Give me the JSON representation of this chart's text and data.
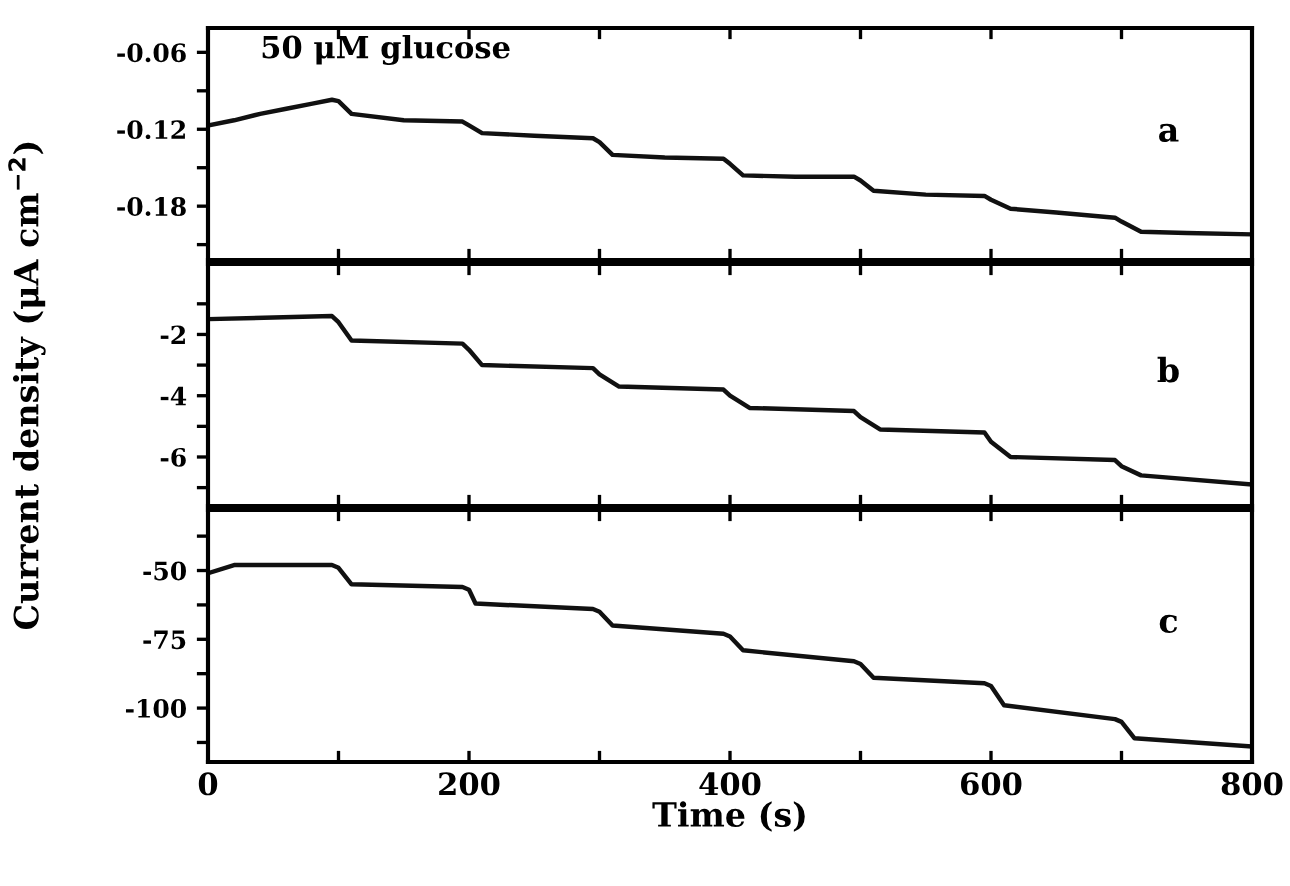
{
  "chart_data": [
    {
      "type": "line",
      "x": [
        0,
        20,
        40,
        60,
        80,
        95,
        100,
        110,
        150,
        195,
        200,
        210,
        250,
        295,
        300,
        310,
        350,
        395,
        400,
        410,
        450,
        495,
        500,
        510,
        550,
        595,
        600,
        615,
        650,
        695,
        700,
        715,
        750,
        800
      ],
      "series": [
        {
          "color": "#111111",
          "values": [
            -0.117,
            -0.113,
            -0.108,
            -0.104,
            -0.1,
            -0.097,
            -0.098,
            -0.108,
            -0.113,
            -0.114,
            -0.117,
            -0.123,
            -0.125,
            -0.127,
            -0.13,
            -0.14,
            -0.142,
            -0.143,
            -0.147,
            -0.156,
            -0.157,
            -0.157,
            -0.16,
            -0.168,
            -0.171,
            -0.172,
            -0.175,
            -0.182,
            -0.185,
            -0.189,
            -0.192,
            -0.2,
            -0.201,
            -0.202
          ]
        }
      ],
      "annotations": [
        "50 μM glucose",
        "a"
      ],
      "xlim": [
        0,
        800
      ],
      "xticks": [
        {
          "value": 0,
          "label": null
        },
        {
          "value": 100,
          "label": null
        },
        {
          "value": 200,
          "label": null
        },
        {
          "value": 300,
          "label": null
        },
        {
          "value": 400,
          "label": null
        },
        {
          "value": 500,
          "label": null
        },
        {
          "value": 600,
          "label": null
        },
        {
          "value": 700,
          "label": null
        },
        {
          "value": 800,
          "label": null
        }
      ],
      "ylim": [
        -0.222,
        -0.041
      ],
      "yticks": [
        {
          "value": -0.06,
          "label": "-0.06"
        },
        {
          "value": -0.09,
          "label": null
        },
        {
          "value": -0.12,
          "label": "-0.12"
        },
        {
          "value": -0.15,
          "label": null
        },
        {
          "value": -0.18,
          "label": "-0.18"
        },
        {
          "value": -0.21,
          "label": null
        }
      ],
      "tick_labels": "y",
      "grid": false,
      "legend": false
    },
    {
      "type": "line",
      "x": [
        0,
        95,
        100,
        110,
        195,
        200,
        210,
        295,
        300,
        315,
        395,
        400,
        415,
        495,
        500,
        515,
        595,
        600,
        615,
        695,
        700,
        715,
        800
      ],
      "series": [
        {
          "color": "#111111",
          "values": [
            -1.5,
            -1.4,
            -1.6,
            -2.2,
            -2.3,
            -2.5,
            -3.0,
            -3.1,
            -3.3,
            -3.7,
            -3.8,
            -4.0,
            -4.4,
            -4.5,
            -4.7,
            -5.1,
            -5.2,
            -5.5,
            -6.0,
            -6.1,
            -6.3,
            -6.6,
            -6.9
          ]
        }
      ],
      "annotations": [
        "b"
      ],
      "ylabel": "Current density (μA cm$^{−2}$)",
      "xlim": [
        0,
        800
      ],
      "xticks": [
        {
          "value": 0,
          "label": null
        },
        {
          "value": 100,
          "label": null
        },
        {
          "value": 200,
          "label": null
        },
        {
          "value": 300,
          "label": null
        },
        {
          "value": 400,
          "label": null
        },
        {
          "value": 500,
          "label": null
        },
        {
          "value": 600,
          "label": null
        },
        {
          "value": 700,
          "label": null
        },
        {
          "value": 800,
          "label": null
        }
      ],
      "ylim": [
        -7.6,
        0.3
      ],
      "yticks": [
        {
          "value": -1,
          "label": null
        },
        {
          "value": -2,
          "label": "-2"
        },
        {
          "value": -3,
          "label": null
        },
        {
          "value": -4,
          "label": "-4"
        },
        {
          "value": -5,
          "label": null
        },
        {
          "value": -6,
          "label": "-6"
        },
        {
          "value": -7,
          "label": null
        }
      ],
      "tick_labels": "y",
      "grid": false,
      "legend": false
    },
    {
      "type": "line",
      "x": [
        0,
        20,
        95,
        100,
        110,
        195,
        200,
        205,
        295,
        300,
        310,
        395,
        400,
        410,
        495,
        500,
        510,
        595,
        600,
        610,
        695,
        700,
        710,
        800
      ],
      "series": [
        {
          "color": "#111111",
          "values": [
            -51,
            -48,
            -48,
            -49,
            -55,
            -56,
            -57,
            -62,
            -64,
            -65,
            -70,
            -73,
            -74,
            -79,
            -83,
            -84,
            -89,
            -91,
            -92,
            -99,
            -104,
            -105,
            -111,
            -114
          ]
        }
      ],
      "annotations": [
        "c"
      ],
      "xlabel": "Time (s)",
      "xlim": [
        0,
        800
      ],
      "xticks": [
        0,
        {
          "value": 100,
          "label": null
        },
        200,
        {
          "value": 300,
          "label": null
        },
        400,
        {
          "value": 500,
          "label": null
        },
        600,
        {
          "value": 700,
          "label": null
        },
        800
      ],
      "ylim": [
        -119.6,
        -28
      ],
      "yticks": [
        {
          "value": -37.5,
          "label": null
        },
        {
          "value": -50,
          "label": "-50"
        },
        {
          "value": -62.5,
          "label": null
        },
        {
          "value": -75,
          "label": "-75"
        },
        {
          "value": -87.5,
          "label": null
        },
        {
          "value": -100,
          "label": "-100"
        },
        {
          "value": -112.5,
          "label": null
        }
      ],
      "grid": false,
      "legend": false
    }
  ]
}
